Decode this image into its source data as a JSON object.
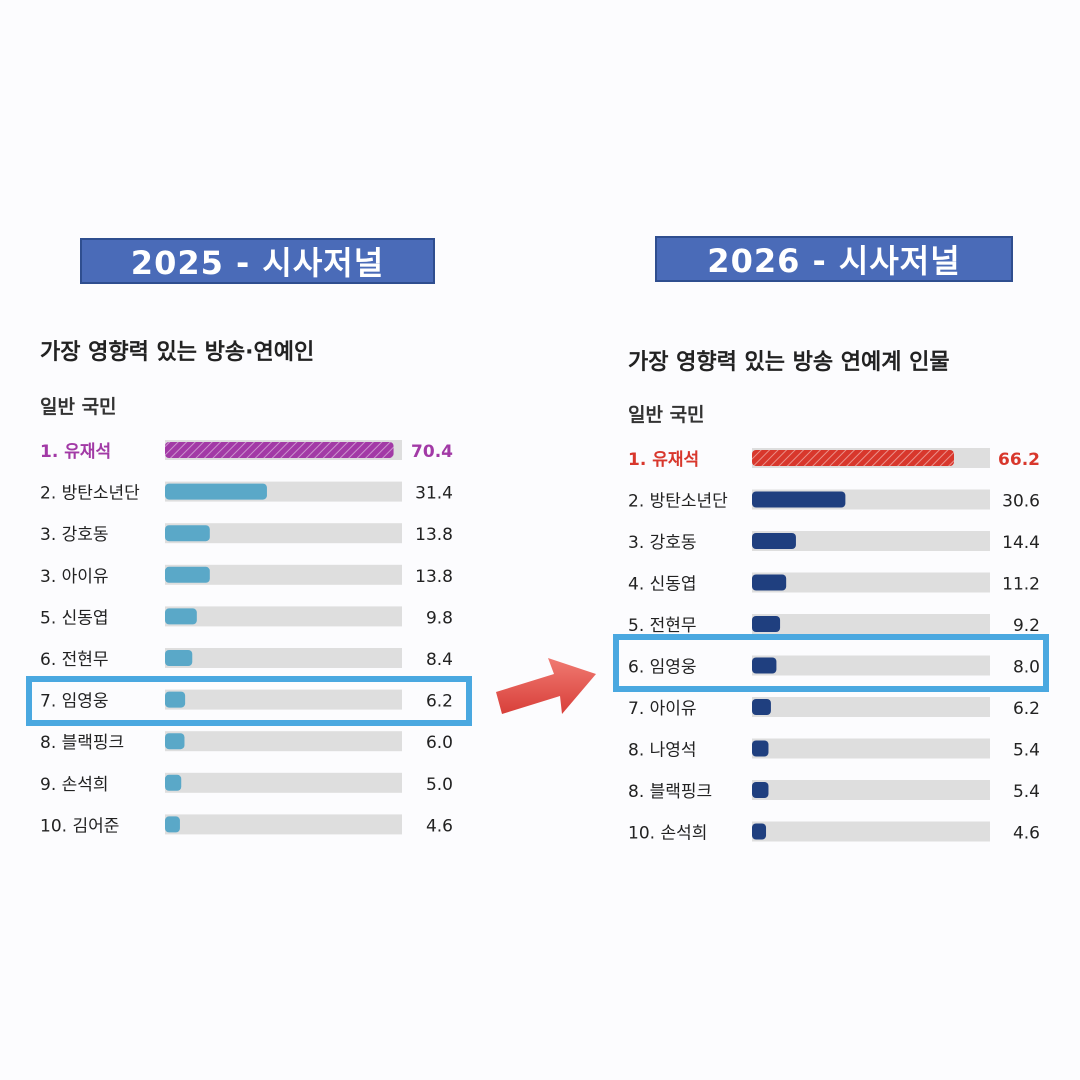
{
  "colors": {
    "banner": "#4a6bb8",
    "highlight": "#4aa8e0",
    "arrow": "#e8554f",
    "track": "#dedede"
  },
  "chart_data": [
    {
      "type": "bar",
      "banner": "2025 - 시사저널",
      "title": "가장 영향력 있는 방송·연예인",
      "subtitle": "일반 국민",
      "categories": [
        "1. 유재석",
        "2. 방탄소년단",
        "3. 강호동",
        "3. 아이유",
        "5. 신동엽",
        "6. 전현무",
        "7. 임영웅",
        "8. 블랙핑크",
        "9. 손석희",
        "10. 김어준"
      ],
      "values": [
        70.4,
        31.4,
        13.8,
        13.8,
        9.8,
        8.4,
        6.2,
        6.0,
        5.0,
        4.6
      ],
      "value_labels": [
        "70.4",
        "31.4",
        "13.8",
        "13.8",
        "9.8",
        "8.4",
        "6.2",
        "6.0",
        "5.0",
        "4.6"
      ],
      "xlim": [
        0,
        73
      ],
      "highlight_top_color": "#a23aa6",
      "bar_color": "#5aa8c8",
      "highlighted_row": "7. 임영웅"
    },
    {
      "type": "bar",
      "banner": "2026 - 시사저널",
      "title": "가장 영향력 있는 방송 연예계 인물",
      "subtitle": "일반 국민",
      "categories": [
        "1. 유재석",
        "2. 방탄소년단",
        "3. 강호동",
        "4. 신동엽",
        "5. 전현무",
        "6. 임영웅",
        "7. 아이유",
        "8. 나영석",
        "8. 블랙핑크",
        "10. 손석희"
      ],
      "values": [
        66.2,
        30.6,
        14.4,
        11.2,
        9.2,
        8.0,
        6.2,
        5.4,
        5.4,
        4.6
      ],
      "value_labels": [
        "66.2",
        "30.6",
        "14.4",
        "11.2",
        "9.2",
        "8.0",
        "6.2",
        "5.4",
        "5.4",
        "4.6"
      ],
      "xlim": [
        0,
        78
      ],
      "highlight_top_color": "#d8372c",
      "bar_color": "#1f3f7f",
      "highlighted_row": "6. 임영웅"
    }
  ]
}
